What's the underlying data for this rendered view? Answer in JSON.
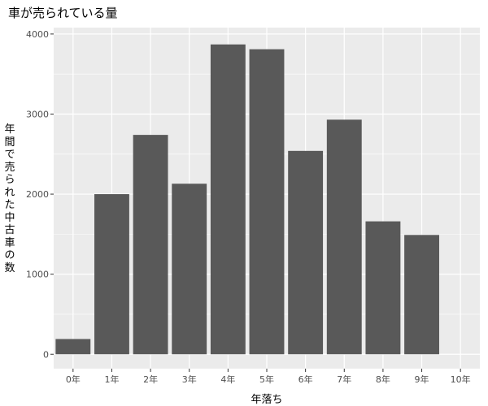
{
  "chart_data": {
    "type": "bar",
    "title": "車が売られている量",
    "xlabel": "年落ち",
    "ylabel": "年間で売られた中古車の数",
    "categories": [
      "0年",
      "1年",
      "2年",
      "3年",
      "4年",
      "5年",
      "6年",
      "7年",
      "8年",
      "9年",
      "10年"
    ],
    "values": [
      190,
      2000,
      2740,
      2130,
      3870,
      3810,
      2540,
      2930,
      1660,
      1490,
      0
    ],
    "ylim": [
      -180,
      4080
    ],
    "yticks": [
      0,
      1000,
      2000,
      3000,
      4000
    ],
    "grid": true,
    "legend": "none",
    "colors": {
      "panel": "#ebebeb",
      "grid_major": "#ffffff",
      "bar": "#595959",
      "tick_text": "#4d4d4d",
      "tick_mark": "#333333"
    }
  }
}
